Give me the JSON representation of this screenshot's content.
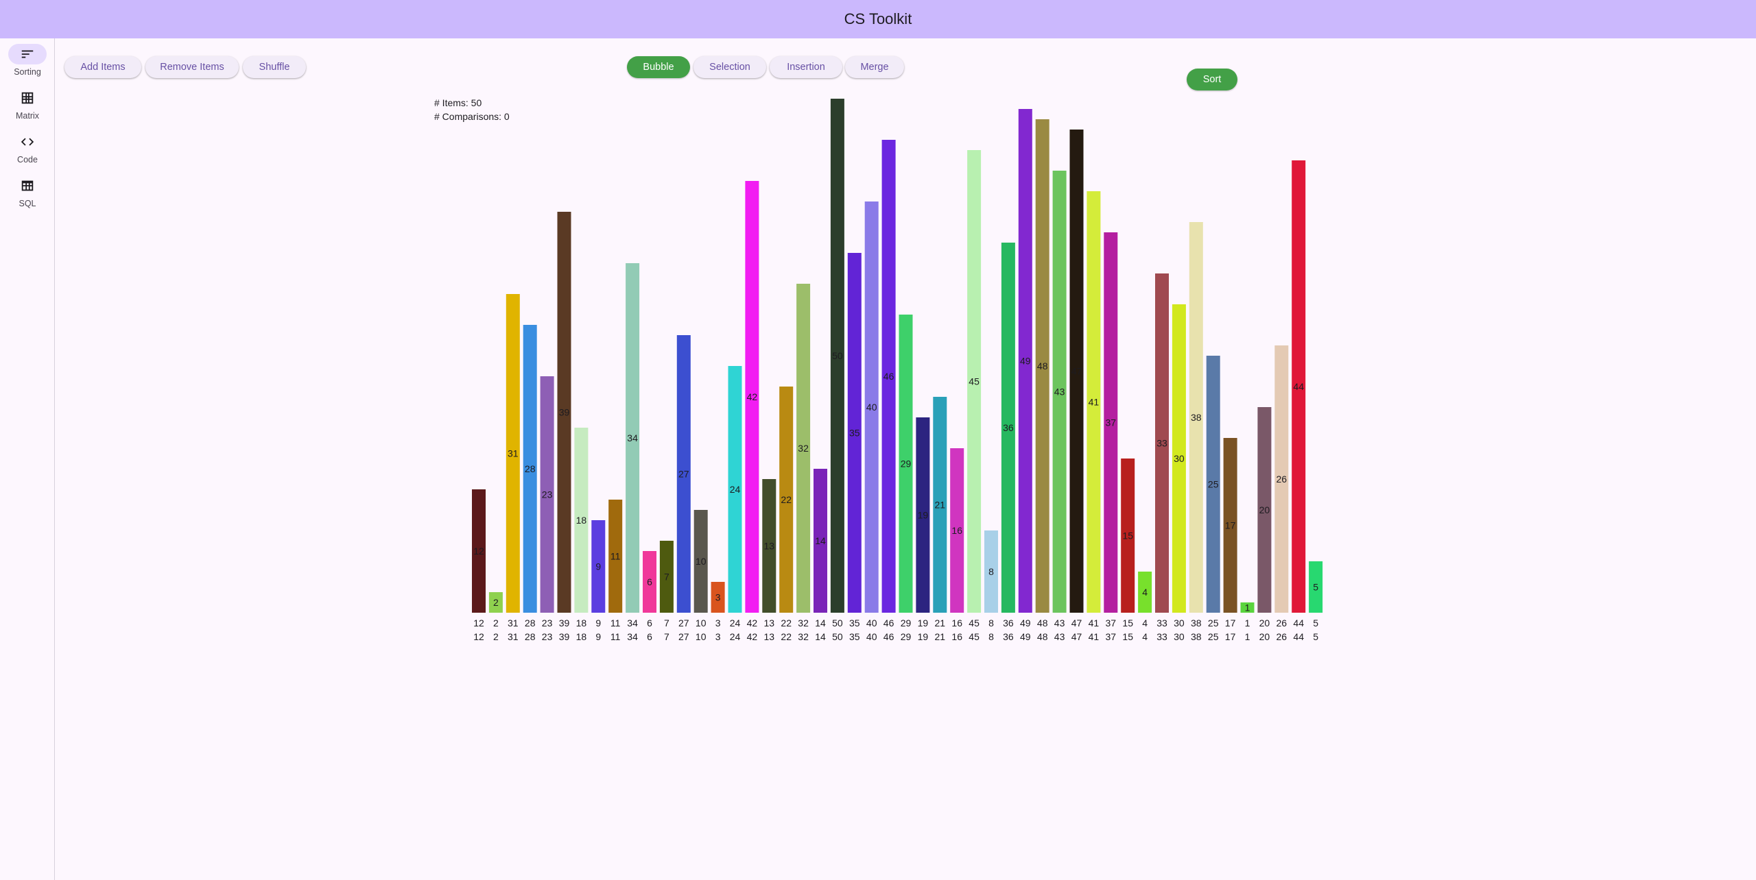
{
  "app": {
    "title": "CS Toolkit"
  },
  "rail": {
    "items": [
      {
        "label": "Sorting",
        "icon": "sort-icon",
        "active": true
      },
      {
        "label": "Matrix",
        "icon": "grid-icon",
        "active": false
      },
      {
        "label": "Code",
        "icon": "code-icon",
        "active": false
      },
      {
        "label": "SQL",
        "icon": "table-icon",
        "active": false
      }
    ]
  },
  "toolbar": {
    "add_label": "Add Items",
    "remove_label": "Remove Items",
    "shuffle_label": "Shuffle"
  },
  "algorithms": {
    "selected": "Bubble",
    "items": [
      "Bubble",
      "Selection",
      "Insertion",
      "Merge"
    ]
  },
  "sort_label": "Sort",
  "stats": {
    "items": "# Items: 50",
    "comparisons": "# Comparisons: 0"
  },
  "colors": {
    "accent": "#43a047",
    "app_bar": "#cbb8fd",
    "primary": "#6750a4"
  },
  "chart_data": {
    "type": "bar",
    "values": [
      12,
      2,
      31,
      28,
      23,
      39,
      18,
      9,
      11,
      34,
      6,
      7,
      27,
      10,
      3,
      24,
      42,
      13,
      22,
      32,
      14,
      50,
      35,
      40,
      46,
      29,
      19,
      21,
      16,
      45,
      8,
      36,
      49,
      48,
      43,
      47,
      41,
      37,
      15,
      4,
      33,
      30,
      38,
      25,
      17,
      1,
      20,
      26,
      44,
      5
    ],
    "categories": [
      "12",
      "2",
      "31",
      "28",
      "23",
      "39",
      "18",
      "9",
      "11",
      "34",
      "6",
      "7",
      "27",
      "10",
      "3",
      "24",
      "42",
      "13",
      "22",
      "32",
      "14",
      "50",
      "35",
      "40",
      "46",
      "29",
      "19",
      "21",
      "16",
      "45",
      "8",
      "36",
      "49",
      "48",
      "43",
      "47",
      "41",
      "37",
      "15",
      "4",
      "33",
      "30",
      "38",
      "25",
      "17",
      "1",
      "20",
      "26",
      "44",
      "5"
    ],
    "colors": [
      "#5c1a1b",
      "#8fd14f",
      "#e0b400",
      "#3a8ee0",
      "#8e5fb5",
      "#5a3a24",
      "#c6ebc0",
      "#5b3ee0",
      "#a06a0d",
      "#92cbb5",
      "#f0389a",
      "#4e5a0f",
      "#3c4fd0",
      "#5a584e",
      "#d9541e",
      "#2fd4d4",
      "#f21df2",
      "#424d2b",
      "#b98a12",
      "#9cbe6a",
      "#7a24b8",
      "#2c3e2c",
      "#6224d6",
      "#8a7be8",
      "#6b26e0",
      "#3ed06a",
      "#2c2480",
      "#2aa0b8",
      "#d035c0",
      "#b8f0b0",
      "#a8d0e8",
      "#26b860",
      "#8228d0",
      "#9a8a42",
      "#6cc45e",
      "#241a10",
      "#d4ec3a",
      "#b41fa0",
      "#b8201e",
      "#78e02c",
      "#a04a50",
      "#d2e81e",
      "#e8e2ae",
      "#5a7aa8",
      "#7a5224",
      "#5ad43e",
      "#7a5868",
      "#e4cab4",
      "#e01838",
      "#28d870"
    ],
    "ylim": [
      0,
      50
    ]
  }
}
